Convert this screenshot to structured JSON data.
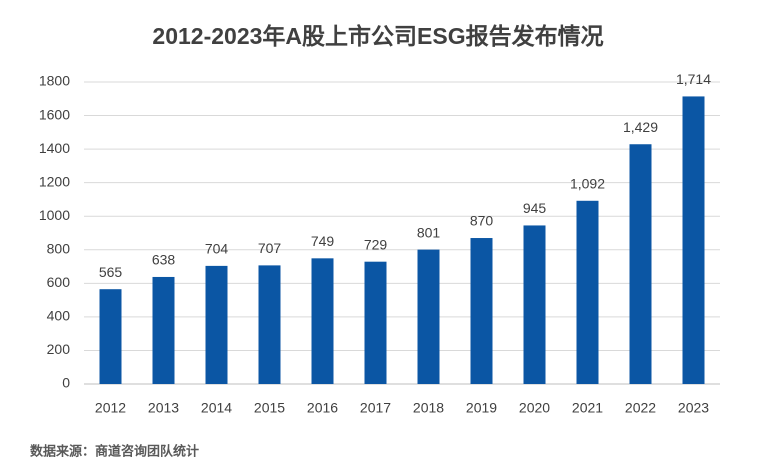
{
  "chart_data": {
    "type": "bar",
    "title": "2012-2023年A股上市公司ESG报告发布情况",
    "categories": [
      "2012",
      "2013",
      "2014",
      "2015",
      "2016",
      "2017",
      "2018",
      "2019",
      "2020",
      "2021",
      "2022",
      "2023"
    ],
    "values": [
      565,
      638,
      704,
      707,
      749,
      729,
      801,
      870,
      945,
      1092,
      1429,
      1714
    ],
    "value_labels": [
      "565",
      "638",
      "704",
      "707",
      "749",
      "729",
      "801",
      "870",
      "945",
      "1,092",
      "1,429",
      "1,714"
    ],
    "color": "#0b56a4",
    "ylim": [
      0,
      1800
    ],
    "yticks": [
      0,
      200,
      400,
      600,
      800,
      1000,
      1200,
      1400,
      1600,
      1800
    ],
    "grid": true,
    "source": "数据来源：商道咨询团队统计"
  }
}
